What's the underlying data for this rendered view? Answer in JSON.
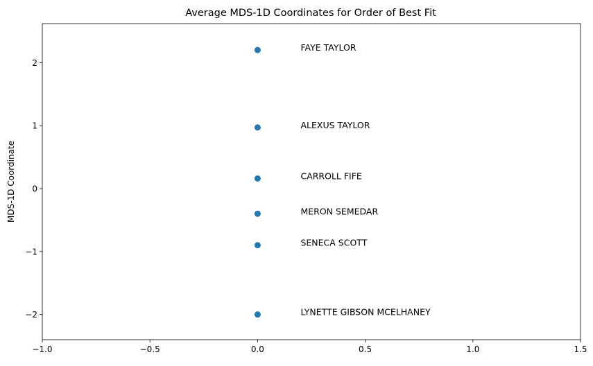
{
  "chart_data": {
    "type": "scatter",
    "title": "Average MDS-1D Coordinates for Order of Best Fit",
    "xlabel": "",
    "ylabel": "MDS-1D Coordinate",
    "xlim": [
      -1.0,
      1.5
    ],
    "ylim": [
      -2.4,
      2.62
    ],
    "xticks": [
      -1.0,
      -0.5,
      0.0,
      0.5,
      1.0,
      1.5
    ],
    "xtick_labels": [
      "−1.0",
      "−0.5",
      "0.0",
      "0.5",
      "1.0",
      "1.5"
    ],
    "yticks": [
      -2,
      -1,
      0,
      1,
      2
    ],
    "ytick_labels": [
      "−2",
      "−1",
      "0",
      "1",
      "2"
    ],
    "grid": false,
    "marker_color": "#1f77b4",
    "label_x_offset": 0.2,
    "points": [
      {
        "label": "FAYE TAYLOR",
        "x": 0.0,
        "y": 2.2
      },
      {
        "label": "ALEXUS TAYLOR",
        "x": 0.0,
        "y": 0.97
      },
      {
        "label": "CARROLL FIFE",
        "x": 0.0,
        "y": 0.16
      },
      {
        "label": "MERON SEMEDAR",
        "x": 0.0,
        "y": -0.4
      },
      {
        "label": "SENECA SCOTT",
        "x": 0.0,
        "y": -0.9
      },
      {
        "label": "LYNETTE GIBSON MCELHANEY",
        "x": 0.0,
        "y": -2.0
      }
    ]
  }
}
